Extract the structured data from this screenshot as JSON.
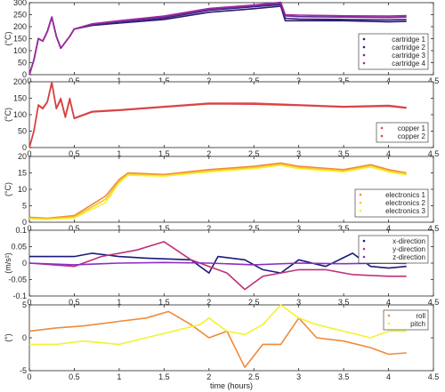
{
  "chart_data": [
    {
      "type": "line",
      "ylabel": "(°C)",
      "xlabel": "",
      "xlim": [
        0,
        4.5
      ],
      "ylim": [
        0,
        300
      ],
      "yticks": [
        0,
        50,
        100,
        150,
        200,
        250,
        300
      ],
      "legend": "bottom-right",
      "series": [
        {
          "name": "cartridge 1",
          "color": "#2b1a6e",
          "x": [
            0,
            0.05,
            0.1,
            0.15,
            0.2,
            0.25,
            0.3,
            0.35,
            0.45,
            0.5,
            0.7,
            1,
            1.5,
            2,
            2.5,
            2.8,
            2.85,
            3,
            3.5,
            4,
            4.2
          ],
          "y": [
            0,
            60,
            150,
            140,
            180,
            240,
            160,
            110,
            160,
            190,
            205,
            215,
            230,
            260,
            275,
            285,
            225,
            225,
            225,
            220,
            222
          ]
        },
        {
          "name": "cartridge 2",
          "color": "#3a2080",
          "x": [
            0,
            0.05,
            0.1,
            0.15,
            0.2,
            0.25,
            0.3,
            0.35,
            0.45,
            0.5,
            0.7,
            1,
            1.5,
            2,
            2.5,
            2.8,
            2.85,
            3,
            3.5,
            4,
            4.2
          ],
          "y": [
            0,
            60,
            150,
            140,
            180,
            240,
            160,
            110,
            160,
            190,
            208,
            220,
            236,
            268,
            283,
            292,
            235,
            232,
            230,
            228,
            230
          ]
        },
        {
          "name": "cartridge 3",
          "color": "#6a2c9a",
          "x": [
            0,
            0.05,
            0.1,
            0.15,
            0.2,
            0.25,
            0.3,
            0.35,
            0.45,
            0.5,
            0.7,
            1,
            1.5,
            2,
            2.5,
            2.8,
            2.85,
            3,
            3.5,
            4,
            4.2
          ],
          "y": [
            0,
            60,
            150,
            140,
            180,
            240,
            160,
            110,
            160,
            190,
            210,
            222,
            240,
            272,
            287,
            298,
            245,
            242,
            240,
            238,
            240
          ]
        },
        {
          "name": "cartridge 4",
          "color": "#a02a9e",
          "x": [
            0,
            0.05,
            0.1,
            0.15,
            0.2,
            0.25,
            0.3,
            0.35,
            0.45,
            0.5,
            0.7,
            1,
            1.5,
            2,
            2.5,
            2.8,
            2.85,
            3,
            3.5,
            4,
            4.2
          ],
          "y": [
            0,
            60,
            150,
            140,
            180,
            240,
            160,
            110,
            160,
            190,
            212,
            225,
            244,
            276,
            290,
            302,
            250,
            248,
            245,
            244,
            246
          ]
        }
      ]
    },
    {
      "type": "line",
      "ylabel": "(°C)",
      "xlabel": "",
      "xlim": [
        0,
        4.5
      ],
      "ylim": [
        0,
        200
      ],
      "yticks": [
        0,
        50,
        100,
        150,
        200
      ],
      "legend": "bottom-right",
      "series": [
        {
          "name": "copper 1",
          "color": "#e0525f",
          "x": [
            0,
            0.05,
            0.1,
            0.15,
            0.2,
            0.25,
            0.3,
            0.35,
            0.4,
            0.45,
            0.5,
            0.7,
            1,
            1.5,
            2,
            2.5,
            3,
            3.5,
            4,
            4.2
          ],
          "y": [
            0,
            50,
            130,
            120,
            140,
            200,
            120,
            150,
            95,
            150,
            90,
            110,
            115,
            125,
            135,
            135,
            130,
            125,
            128,
            122
          ]
        },
        {
          "name": "copper 2",
          "color": "#d8403e",
          "x": [
            0,
            0.05,
            0.1,
            0.15,
            0.2,
            0.25,
            0.3,
            0.35,
            0.4,
            0.45,
            0.5,
            0.7,
            1,
            1.5,
            2,
            2.5,
            3,
            3.5,
            4,
            4.2
          ],
          "y": [
            0,
            48,
            128,
            118,
            138,
            196,
            118,
            146,
            92,
            146,
            88,
            108,
            113,
            123,
            133,
            132,
            128,
            123,
            126,
            120
          ]
        }
      ]
    },
    {
      "type": "line",
      "ylabel": "(°C)",
      "xlabel": "",
      "xlim": [
        0,
        4.5
      ],
      "ylim": [
        0,
        20
      ],
      "yticks": [
        0,
        5,
        10,
        15,
        20
      ],
      "legend": "bottom-right",
      "series": [
        {
          "name": "electronics 1",
          "color": "#f08a3a",
          "x": [
            0,
            0.2,
            0.5,
            0.85,
            1,
            1.1,
            1.5,
            2,
            2.5,
            2.8,
            3,
            3.5,
            3.8,
            4,
            4.2
          ],
          "y": [
            1.5,
            1.2,
            2,
            8,
            13,
            15,
            14.5,
            16,
            17,
            18,
            17,
            16,
            17.5,
            16,
            15
          ]
        },
        {
          "name": "electronics 2",
          "color": "#f8c22a",
          "x": [
            0,
            0.2,
            0.5,
            0.85,
            1,
            1.1,
            1.5,
            2,
            2.5,
            2.8,
            3,
            3.5,
            3.8,
            4,
            4.2
          ],
          "y": [
            1.2,
            1,
            1.6,
            7,
            12.5,
            14.6,
            14.2,
            15.6,
            16.6,
            17.6,
            16.6,
            15.6,
            17.1,
            15.6,
            14.7
          ]
        },
        {
          "name": "electronics 3",
          "color": "#f3f22e",
          "x": [
            0,
            0.2,
            0.5,
            0.85,
            1,
            1.1,
            1.5,
            2,
            2.5,
            2.8,
            3,
            3.5,
            3.8,
            4,
            4.2
          ],
          "y": [
            1,
            0.8,
            1.3,
            6,
            12,
            14.3,
            14,
            15.3,
            16.3,
            17.3,
            16.3,
            15.3,
            16.8,
            15.3,
            14.4
          ]
        }
      ]
    },
    {
      "type": "line",
      "ylabel": "(m/s²)",
      "xlabel": "",
      "xlim": [
        0,
        4.5
      ],
      "ylim": [
        -0.1,
        0.1
      ],
      "yticks": [
        -0.1,
        -0.05,
        0,
        0.05,
        0.1
      ],
      "legend": "top-right",
      "series": [
        {
          "name": "x-direction",
          "color": "#1a1a7a",
          "x": [
            0,
            0.5,
            0.7,
            1,
            1.3,
            1.8,
            2,
            2.1,
            2.4,
            2.6,
            2.8,
            3,
            3.3,
            3.6,
            3.8,
            4,
            4.2
          ],
          "y": [
            0.02,
            0.02,
            0.03,
            0.02,
            0.015,
            0.01,
            -0.03,
            0.02,
            0.01,
            -0.02,
            -0.03,
            0.01,
            -0.01,
            0.03,
            -0.01,
            -0.015,
            -0.01
          ]
        },
        {
          "name": "y-direction",
          "color": "#c0317a",
          "x": [
            0,
            0.5,
            0.8,
            1.2,
            1.5,
            1.8,
            2,
            2.2,
            2.4,
            2.6,
            2.8,
            3,
            3.3,
            3.6,
            4,
            4.2
          ],
          "y": [
            0,
            -0.01,
            0.02,
            0.04,
            0.065,
            0.01,
            -0.01,
            -0.03,
            -0.08,
            -0.04,
            -0.03,
            -0.02,
            -0.02,
            -0.035,
            -0.04,
            -0.04
          ]
        },
        {
          "name": "z-direction",
          "color": "#8a2fc4",
          "x": [
            0,
            0.5,
            1,
            1.5,
            2,
            2.5,
            3,
            3.5,
            4,
            4.2
          ],
          "y": [
            0,
            -0.005,
            0,
            0.002,
            0,
            -0.005,
            0,
            -0.002,
            0,
            -0.001
          ]
        }
      ]
    },
    {
      "type": "line",
      "ylabel": "(°)",
      "xlabel": "time (hours)",
      "xlim": [
        0,
        4.5
      ],
      "ylim": [
        -5,
        5
      ],
      "yticks": [
        -5,
        0,
        5
      ],
      "xticks": [
        0,
        0.5,
        1,
        1.5,
        2,
        2.5,
        3,
        3.5,
        4,
        4.5
      ],
      "legend": "top-right",
      "series": [
        {
          "name": "roll",
          "color": "#f08a3a",
          "x": [
            0,
            0.3,
            0.6,
            1,
            1.3,
            1.55,
            1.8,
            2,
            2.2,
            2.4,
            2.6,
            2.8,
            3,
            3.2,
            3.5,
            3.8,
            4,
            4.2
          ],
          "y": [
            1,
            1.5,
            1.8,
            2.5,
            3,
            4,
            2,
            0,
            1,
            -4.5,
            -1,
            -1,
            3,
            0,
            -0.5,
            -1.5,
            -2.5,
            -2.3
          ]
        },
        {
          "name": "pitch",
          "color": "#f3f22e",
          "x": [
            0,
            0.3,
            0.6,
            1,
            1.3,
            1.6,
            1.9,
            2,
            2.2,
            2.4,
            2.6,
            2.8,
            3,
            3.2,
            3.5,
            3.8,
            4,
            4.2
          ],
          "y": [
            -1,
            -1,
            -0.5,
            -1,
            0,
            1,
            2,
            3,
            1,
            0.5,
            2,
            5,
            3,
            2,
            1,
            0,
            1,
            1
          ]
        }
      ]
    }
  ],
  "x_axis": {
    "label": "time (hours)",
    "ticks": [
      "0",
      "0.5",
      "1",
      "1.5",
      "2",
      "2.5",
      "3",
      "3.5",
      "4",
      "4.5"
    ]
  }
}
